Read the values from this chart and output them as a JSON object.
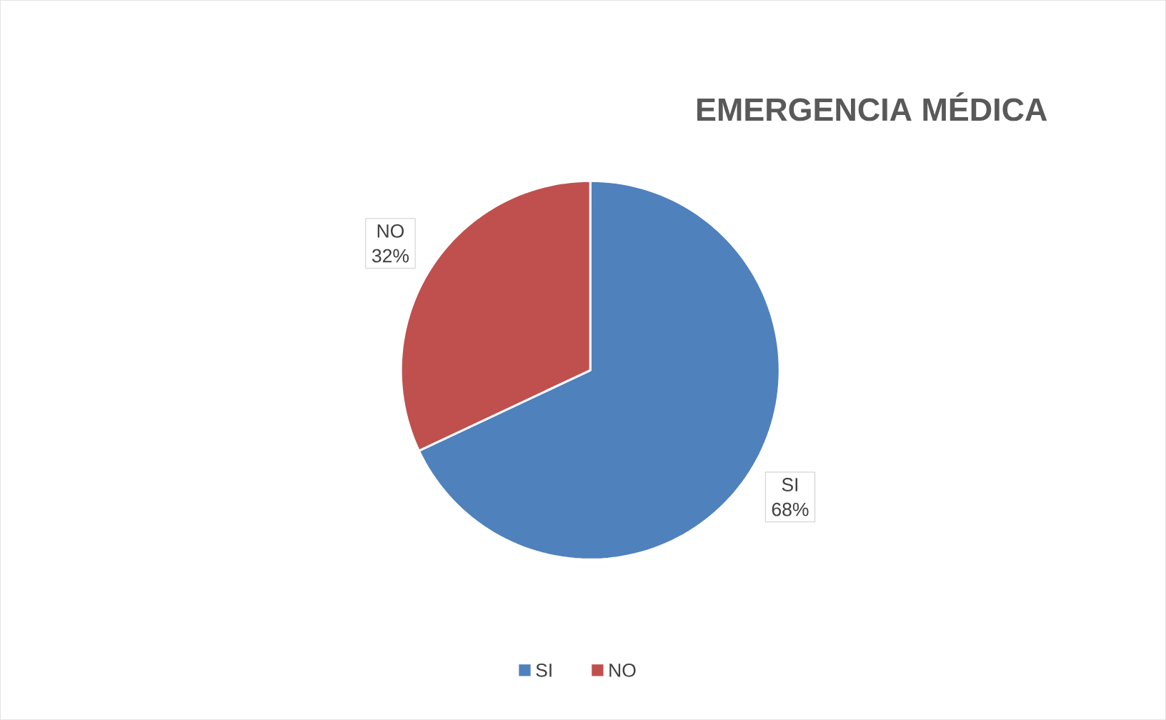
{
  "chart_data": {
    "type": "pie",
    "title": "EMERGENCIA MÉDICA",
    "categories": [
      "SI",
      "NO"
    ],
    "values": [
      68,
      32
    ],
    "value_labels": [
      "68%",
      "32%"
    ],
    "colors": [
      "#4f81bd",
      "#c0504d"
    ],
    "legend": "bottom"
  }
}
